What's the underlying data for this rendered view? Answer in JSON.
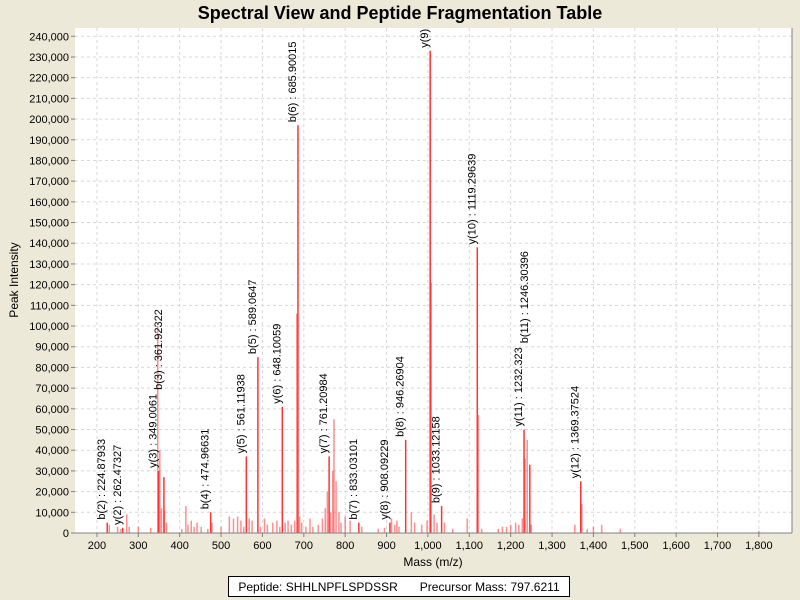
{
  "chart_data": {
    "type": "bar",
    "title": "Spectral View and Peptide Fragmentation Table",
    "xlabel": "Mass (m/z)",
    "ylabel": "Peak Intensity",
    "xlim": [
      147,
      1880
    ],
    "ylim": [
      0,
      244000
    ],
    "xticks": [
      200,
      300,
      400,
      500,
      600,
      700,
      800,
      900,
      1000,
      1100,
      1200,
      1300,
      1400,
      1500,
      1600,
      1700,
      1800
    ],
    "xtick_labels": [
      "200",
      "300",
      "400",
      "500",
      "600",
      "700",
      "800",
      "900",
      "1,000",
      "1,100",
      "1,200",
      "1,300",
      "1,400",
      "1,500",
      "1,600",
      "1,700",
      "1,800"
    ],
    "yticks": [
      0,
      10000,
      20000,
      30000,
      40000,
      50000,
      60000,
      70000,
      80000,
      90000,
      100000,
      110000,
      120000,
      130000,
      140000,
      150000,
      160000,
      170000,
      180000,
      190000,
      200000,
      210000,
      220000,
      230000,
      240000
    ],
    "ytick_labels": [
      "0",
      "10,000",
      "20,000",
      "30,000",
      "40,000",
      "50,000",
      "60,000",
      "70,000",
      "80,000",
      "90,000",
      "100,000",
      "110,000",
      "120,000",
      "130,000",
      "140,000",
      "150,000",
      "160,000",
      "170,000",
      "180,000",
      "190,000",
      "200,000",
      "210,000",
      "220,000",
      "230,000",
      "240,000"
    ],
    "grid": true,
    "color": "#ff3333",
    "annotated_peaks": [
      {
        "mz": 224.87933,
        "intensity": 5000,
        "label": "b(2) : 224.87933"
      },
      {
        "mz": 262.47327,
        "intensity": 2500,
        "label": "y(2) : 262.47327"
      },
      {
        "mz": 349.0061,
        "intensity": 30000,
        "label": "y(3) : 349.0061"
      },
      {
        "mz": 361.92322,
        "intensity": 27000,
        "label": "b(3) : 361.92322"
      },
      {
        "mz": 474.96631,
        "intensity": 10000,
        "label": "b(4) : 474.96631"
      },
      {
        "mz": 561.11938,
        "intensity": 37000,
        "label": "y(5) : 561.11938"
      },
      {
        "mz": 589.0647,
        "intensity": 85000,
        "label": "b(5) : 589.0647"
      },
      {
        "mz": 648.10059,
        "intensity": 61000,
        "label": "y(6) : 648.10059"
      },
      {
        "mz": 685.90015,
        "intensity": 197000,
        "label": "b(6) : 685.90015"
      },
      {
        "mz": 761.20984,
        "intensity": 37000,
        "label": "y(7) : 761.20984"
      },
      {
        "mz": 833.03101,
        "intensity": 5000,
        "label": "b(7) : 833.03101"
      },
      {
        "mz": 908.09229,
        "intensity": 5000,
        "label": "y(8) : 908.09229"
      },
      {
        "mz": 946.26904,
        "intensity": 45000,
        "label": "b(8) : 946.26904"
      },
      {
        "mz": 1005.5,
        "intensity": 233000,
        "label": "y(9) :"
      },
      {
        "mz": 1033.12158,
        "intensity": 13000,
        "label": "b(9) : 1033.12158"
      },
      {
        "mz": 1119.29639,
        "intensity": 138000,
        "label": "y(10) : 1119.29639"
      },
      {
        "mz": 1232.323,
        "intensity": 50000,
        "label": "y(11) : 1232.323"
      },
      {
        "mz": 1246.30396,
        "intensity": 33000,
        "label": "b(11) : 1246.30396"
      },
      {
        "mz": 1369.37524,
        "intensity": 25000,
        "label": "y(12) : 1369.37524"
      }
    ],
    "other_peaks": [
      [
        230,
        4000
      ],
      [
        250,
        3000
      ],
      [
        258,
        2000
      ],
      [
        272,
        9000
      ],
      [
        278,
        3000
      ],
      [
        300,
        3000
      ],
      [
        330,
        2500
      ],
      [
        347,
        100000
      ],
      [
        352,
        40000
      ],
      [
        356,
        12000
      ],
      [
        363,
        11000
      ],
      [
        368,
        5000
      ],
      [
        405,
        2000
      ],
      [
        415,
        13000
      ],
      [
        420,
        4000
      ],
      [
        428,
        6000
      ],
      [
        435,
        3000
      ],
      [
        442,
        5000
      ],
      [
        452,
        3000
      ],
      [
        468,
        2000
      ],
      [
        478,
        5000
      ],
      [
        500,
        3000
      ],
      [
        520,
        8000
      ],
      [
        530,
        7000
      ],
      [
        540,
        8000
      ],
      [
        548,
        6000
      ],
      [
        555,
        3000
      ],
      [
        568,
        7000
      ],
      [
        575,
        6000
      ],
      [
        595,
        3000
      ],
      [
        605,
        7000
      ],
      [
        612,
        4000
      ],
      [
        625,
        5000
      ],
      [
        635,
        6000
      ],
      [
        642,
        3000
      ],
      [
        655,
        5000
      ],
      [
        662,
        6000
      ],
      [
        670,
        4000
      ],
      [
        678,
        6000
      ],
      [
        683,
        106000
      ],
      [
        690,
        8000
      ],
      [
        695,
        5000
      ],
      [
        705,
        3000
      ],
      [
        715,
        7000
      ],
      [
        722,
        3000
      ],
      [
        735,
        4000
      ],
      [
        745,
        7000
      ],
      [
        752,
        12000
      ],
      [
        757,
        20000
      ],
      [
        765,
        10000
      ],
      [
        770,
        30000
      ],
      [
        773,
        55000
      ],
      [
        778,
        25000
      ],
      [
        785,
        10000
      ],
      [
        790,
        5000
      ],
      [
        800,
        8000
      ],
      [
        812,
        6000
      ],
      [
        840,
        3000
      ],
      [
        880,
        2000
      ],
      [
        895,
        2500
      ],
      [
        912,
        7000
      ],
      [
        920,
        4000
      ],
      [
        925,
        6000
      ],
      [
        930,
        3000
      ],
      [
        960,
        10000
      ],
      [
        968,
        5000
      ],
      [
        985,
        4000
      ],
      [
        998,
        6000
      ],
      [
        1008,
        121000
      ],
      [
        1015,
        9000
      ],
      [
        1022,
        5000
      ],
      [
        1040,
        5000
      ],
      [
        1060,
        2000
      ],
      [
        1095,
        7000
      ],
      [
        1122,
        57000
      ],
      [
        1130,
        2000
      ],
      [
        1170,
        2000
      ],
      [
        1180,
        3000
      ],
      [
        1190,
        3000
      ],
      [
        1200,
        4000
      ],
      [
        1212,
        5000
      ],
      [
        1220,
        4000
      ],
      [
        1228,
        7000
      ],
      [
        1235,
        36000
      ],
      [
        1240,
        45000
      ],
      [
        1250,
        4000
      ],
      [
        1355,
        4000
      ],
      [
        1372,
        14000
      ],
      [
        1385,
        2000
      ],
      [
        1400,
        3000
      ],
      [
        1420,
        4000
      ],
      [
        1465,
        2000
      ],
      [
        1800,
        1000
      ]
    ]
  },
  "legend": {
    "peptide": "Peptide: SHHLNPFLSPDSSR",
    "precursor": "Precursor Mass: 797.6211"
  }
}
